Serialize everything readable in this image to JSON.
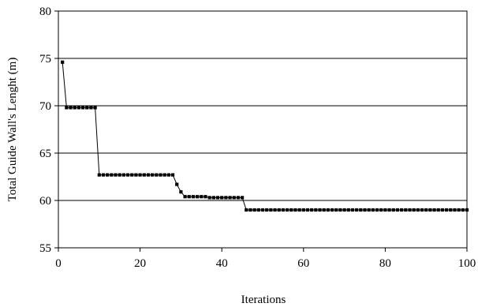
{
  "chart_data": {
    "type": "line",
    "title": "",
    "xlabel": "Iterations",
    "ylabel": "Total Guide Wall's Lenght (m)",
    "xlim": [
      0,
      100
    ],
    "ylim": [
      55,
      80
    ],
    "xticks": [
      0,
      20,
      40,
      60,
      80,
      100
    ],
    "yticks": [
      55,
      60,
      65,
      70,
      75,
      80
    ],
    "grid": "horizontal",
    "legend": "none",
    "colors": {
      "line": "#000000",
      "marker": "#000000",
      "grid": "#000000"
    },
    "series": [
      {
        "values": [
          [
            1,
            74.6
          ],
          [
            2,
            69.8
          ],
          [
            3,
            69.8
          ],
          [
            4,
            69.8
          ],
          [
            5,
            69.8
          ],
          [
            6,
            69.8
          ],
          [
            7,
            69.8
          ],
          [
            8,
            69.8
          ],
          [
            9,
            69.8
          ],
          [
            10,
            62.7
          ],
          [
            11,
            62.7
          ],
          [
            12,
            62.7
          ],
          [
            13,
            62.7
          ],
          [
            14,
            62.7
          ],
          [
            15,
            62.7
          ],
          [
            16,
            62.7
          ],
          [
            17,
            62.7
          ],
          [
            18,
            62.7
          ],
          [
            19,
            62.7
          ],
          [
            20,
            62.7
          ],
          [
            21,
            62.7
          ],
          [
            22,
            62.7
          ],
          [
            23,
            62.7
          ],
          [
            24,
            62.7
          ],
          [
            25,
            62.7
          ],
          [
            26,
            62.7
          ],
          [
            27,
            62.7
          ],
          [
            28,
            62.7
          ],
          [
            29,
            61.7
          ],
          [
            30,
            60.9
          ],
          [
            31,
            60.4
          ],
          [
            32,
            60.4
          ],
          [
            33,
            60.4
          ],
          [
            34,
            60.4
          ],
          [
            35,
            60.4
          ],
          [
            36,
            60.4
          ],
          [
            37,
            60.3
          ],
          [
            38,
            60.3
          ],
          [
            39,
            60.3
          ],
          [
            40,
            60.3
          ],
          [
            41,
            60.3
          ],
          [
            42,
            60.3
          ],
          [
            43,
            60.3
          ],
          [
            44,
            60.3
          ],
          [
            45,
            60.3
          ],
          [
            46,
            59.0
          ],
          [
            47,
            59.0
          ],
          [
            48,
            59.0
          ],
          [
            49,
            59.0
          ],
          [
            50,
            59.0
          ],
          [
            51,
            59.0
          ],
          [
            52,
            59.0
          ],
          [
            53,
            59.0
          ],
          [
            54,
            59.0
          ],
          [
            55,
            59.0
          ],
          [
            56,
            59.0
          ],
          [
            57,
            59.0
          ],
          [
            58,
            59.0
          ],
          [
            59,
            59.0
          ],
          [
            60,
            59.0
          ],
          [
            61,
            59.0
          ],
          [
            62,
            59.0
          ],
          [
            63,
            59.0
          ],
          [
            64,
            59.0
          ],
          [
            65,
            59.0
          ],
          [
            66,
            59.0
          ],
          [
            67,
            59.0
          ],
          [
            68,
            59.0
          ],
          [
            69,
            59.0
          ],
          [
            70,
            59.0
          ],
          [
            71,
            59.0
          ],
          [
            72,
            59.0
          ],
          [
            73,
            59.0
          ],
          [
            74,
            59.0
          ],
          [
            75,
            59.0
          ],
          [
            76,
            59.0
          ],
          [
            77,
            59.0
          ],
          [
            78,
            59.0
          ],
          [
            79,
            59.0
          ],
          [
            80,
            59.0
          ],
          [
            81,
            59.0
          ],
          [
            82,
            59.0
          ],
          [
            83,
            59.0
          ],
          [
            84,
            59.0
          ],
          [
            85,
            59.0
          ],
          [
            86,
            59.0
          ],
          [
            87,
            59.0
          ],
          [
            88,
            59.0
          ],
          [
            89,
            59.0
          ],
          [
            90,
            59.0
          ],
          [
            91,
            59.0
          ],
          [
            92,
            59.0
          ],
          [
            93,
            59.0
          ],
          [
            94,
            59.0
          ],
          [
            95,
            59.0
          ],
          [
            96,
            59.0
          ],
          [
            97,
            59.0
          ],
          [
            98,
            59.0
          ],
          [
            99,
            59.0
          ],
          [
            100,
            59.0
          ]
        ]
      }
    ]
  }
}
